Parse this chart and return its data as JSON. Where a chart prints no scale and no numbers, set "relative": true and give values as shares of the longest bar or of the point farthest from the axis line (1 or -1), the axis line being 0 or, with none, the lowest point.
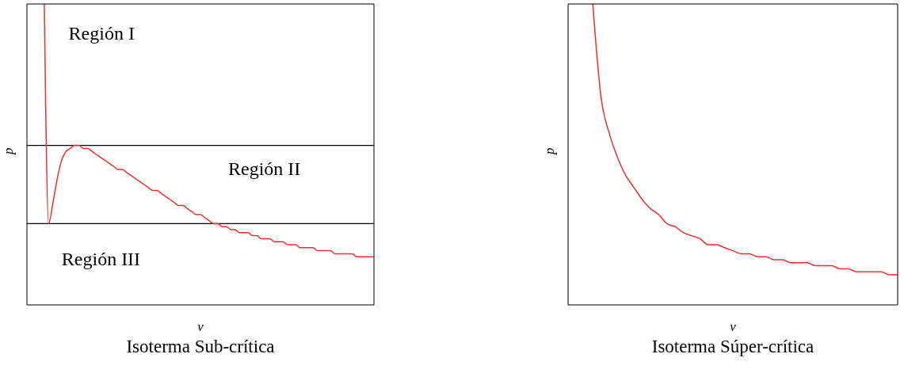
{
  "chart_data": [
    {
      "type": "line",
      "title": "Isoterma Sub-crítica",
      "xlabel": "v",
      "ylabel": "p",
      "relative": true,
      "marker": "none",
      "color": "#e8312f",
      "categories": [
        null,
        null,
        null,
        null,
        null,
        null,
        null,
        null,
        null,
        null,
        null,
        null,
        null,
        null,
        null,
        null,
        null,
        null,
        null,
        null,
        null,
        null,
        null,
        null,
        null,
        null,
        null,
        null,
        null,
        null,
        null,
        null,
        null,
        null,
        null,
        null,
        null,
        null,
        null,
        null,
        null,
        null,
        null,
        null,
        null,
        null,
        null,
        null,
        null,
        null,
        null,
        null,
        null,
        null,
        null,
        null,
        null,
        null,
        null,
        null,
        null,
        null,
        null,
        null,
        null,
        null,
        null,
        null,
        null,
        null,
        null,
        null,
        null,
        null,
        null,
        null,
        null,
        null,
        null,
        null,
        null
      ],
      "values": [
        null,
        null,
        null,
        null,
        1,
        0.27,
        0.34,
        0.42,
        0.48,
        0.51,
        0.52,
        0.53,
        0.53,
        0.52,
        0.52,
        0.51,
        0.5,
        0.49,
        0.48,
        0.47,
        0.46,
        0.45,
        0.45,
        0.44,
        0.43,
        0.42,
        0.41,
        0.4,
        0.39,
        0.38,
        0.38,
        0.37,
        0.36,
        0.35,
        0.34,
        0.33,
        0.33,
        0.32,
        0.31,
        0.3,
        0.3,
        0.29,
        0.28,
        0.27,
        0.27,
        0.26,
        0.26,
        0.25,
        0.25,
        0.24,
        0.24,
        0.24,
        0.23,
        0.23,
        0.22,
        0.22,
        0.22,
        0.21,
        0.21,
        0.21,
        0.2,
        0.2,
        0.2,
        0.19,
        0.19,
        0.19,
        0.19,
        0.18,
        0.18,
        0.18,
        0.18,
        0.17,
        0.17,
        0.17,
        0.17,
        0.17,
        0.16,
        0.16,
        0.16,
        0.16,
        0.16
      ],
      "ref_lines": [
        {
          "axis": "y",
          "value": 0.53,
          "color": "#000000"
        },
        {
          "axis": "y",
          "value": 0.27,
          "color": "#000000"
        }
      ],
      "annotations": [
        "Región I",
        "Región II",
        "Región III"
      ]
    },
    {
      "type": "line",
      "title": "Isoterma Súper-crítica",
      "xlabel": "v",
      "ylabel": "p",
      "relative": true,
      "marker": "none",
      "color": "#e8312f",
      "categories": [
        null,
        null,
        null,
        null,
        null,
        null,
        null,
        null,
        null,
        null,
        null,
        null,
        null,
        null,
        null,
        null,
        null,
        null,
        null,
        null,
        null,
        null,
        null,
        null,
        null,
        null,
        null,
        null,
        null,
        null,
        null,
        null,
        null,
        null,
        null,
        null,
        null,
        null,
        null,
        null,
        null
      ],
      "values": [
        null,
        null,
        null,
        1,
        0.69,
        0.57,
        0.49,
        0.43,
        0.39,
        0.35,
        0.32,
        0.3,
        0.27,
        0.26,
        0.24,
        0.23,
        0.22,
        0.2,
        0.2,
        0.19,
        0.18,
        0.17,
        0.17,
        0.16,
        0.16,
        0.15,
        0.15,
        0.14,
        0.14,
        0.14,
        0.13,
        0.13,
        0.13,
        0.12,
        0.12,
        0.11,
        0.11,
        0.11,
        0.11,
        0.1,
        0.1
      ]
    }
  ]
}
